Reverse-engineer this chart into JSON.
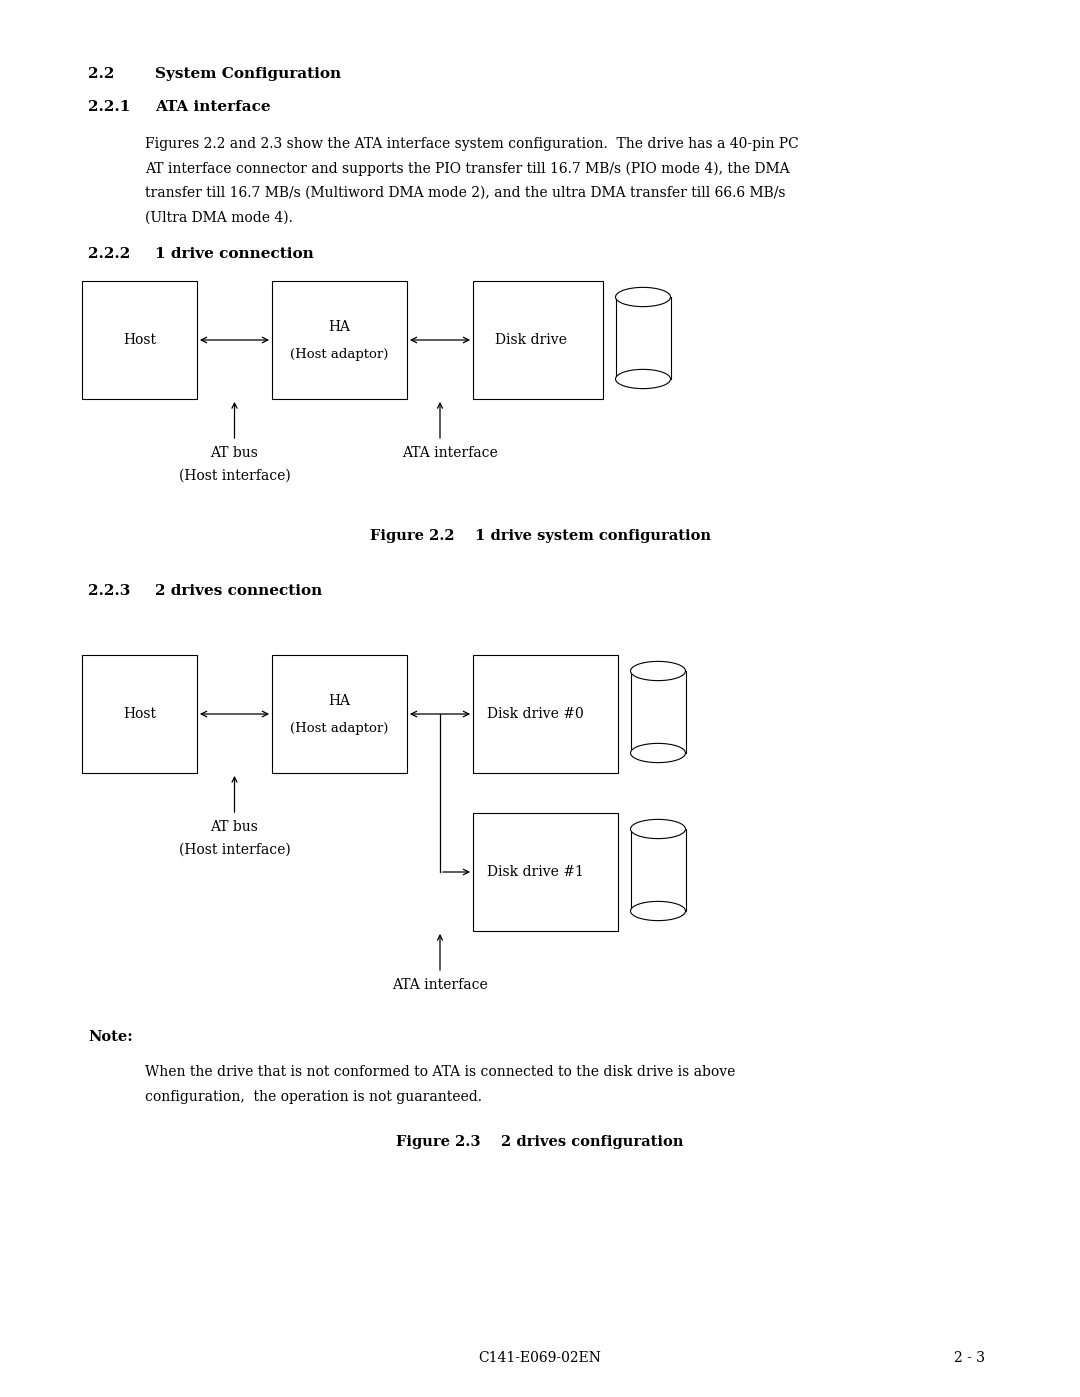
{
  "bg_color": "#ffffff",
  "text_color": "#000000",
  "section_22_num": "2.2",
  "section_22_text": "System Configuration",
  "section_221_num": "2.2.1",
  "section_221_text": "ATA interface",
  "para_line1": "Figures 2.2 and 2.3 show the ATA interface system configuration.  The drive has a 40-pin PC",
  "para_line2": "AT interface connector and supports the PIO transfer till 16.7 MB/s (PIO mode 4), the DMA",
  "para_line3": "transfer till 16.7 MB/s (Multiword DMA mode 2), and the ultra DMA transfer till 66.6 MB/s",
  "para_line4": "(Ultra DMA mode 4).",
  "section_222_num": "2.2.2",
  "section_222_text": "1 drive connection",
  "fig22_caption": "Figure 2.2    1 drive system configuration",
  "section_223_num": "2.2.3",
  "section_223_text": "2 drives connection",
  "fig23_caption": "Figure 2.3    2 drives configuration",
  "note_label": "Note:",
  "note_line1": "When the drive that is not conformed to ATA is connected to the disk drive is above",
  "note_line2": "configuration,  the operation is not guaranteed.",
  "footer_left": "C141-E069-02EN",
  "footer_right": "2 - 3",
  "page_width": 10.8,
  "page_height": 13.97
}
